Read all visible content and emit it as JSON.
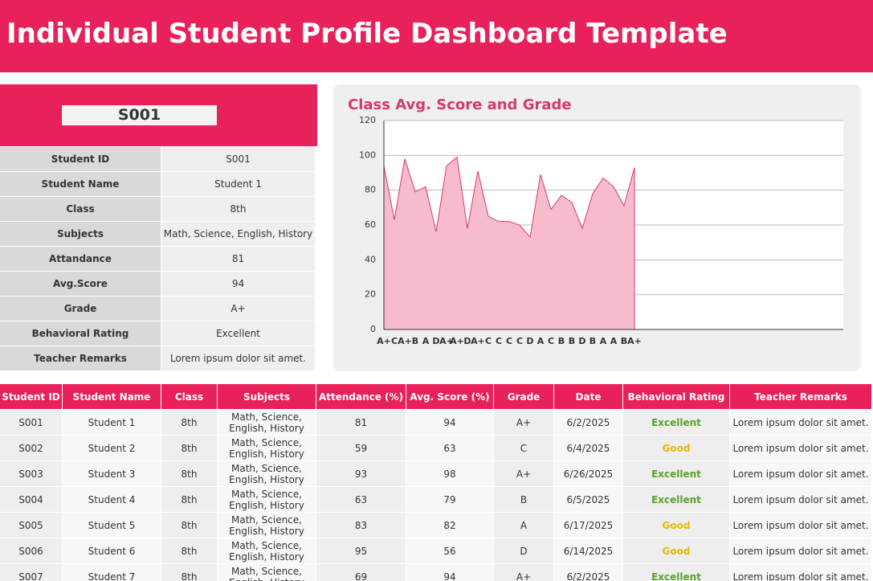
{
  "header": {
    "title": "Individual Student Profile Dashboard Template"
  },
  "profile": {
    "selected": "S001",
    "fields": [
      {
        "label": "Student ID",
        "value": "S001"
      },
      {
        "label": "Student Name",
        "value": "Student 1"
      },
      {
        "label": "Class",
        "value": "8th"
      },
      {
        "label": "Subjects",
        "value": "Math, Science, English, History"
      },
      {
        "label": "Attandance",
        "value": 81
      },
      {
        "label": "Avg.Score",
        "value": 94
      },
      {
        "label": "Grade",
        "value": "A+"
      },
      {
        "label": "Behavioral Rating",
        "value": "Excellent"
      },
      {
        "label": "Teacher Remarks",
        "value": "Lorem ipsum dolor sit amet."
      }
    ]
  },
  "chart_data": {
    "type": "area",
    "title": "Class Avg. Score and Grade",
    "categories": [
      "A+",
      "C",
      "A+",
      "B",
      "A",
      "D",
      "A+",
      "A+",
      "D",
      "A+",
      "C",
      "C",
      "C",
      "C",
      "D",
      "A",
      "C",
      "B",
      "B",
      "D",
      "B",
      "A",
      "A",
      "B",
      "A+"
    ],
    "values": [
      94,
      63,
      98,
      79,
      82,
      56,
      94,
      99,
      58,
      91,
      65,
      62,
      62,
      60,
      53,
      89,
      69,
      77,
      73,
      58,
      78,
      87,
      82,
      71,
      93
    ],
    "color": "#d6396b",
    "fill": "#f7bccb",
    "ylim": [
      0,
      120
    ],
    "yticks": [
      0,
      20,
      40,
      60,
      80,
      100,
      120
    ],
    "grid": true
  },
  "table": {
    "headers": [
      "Student ID",
      "Student Name",
      "Class",
      "Subjects",
      "Attendance (%)",
      "Avg. Score (%)",
      "Grade",
      "Date",
      "Behavioral Rating",
      "Teacher Remarks"
    ],
    "rows": [
      [
        "S001",
        "Student 1",
        "8th",
        "Math, Science, English, History",
        81,
        94,
        "A+",
        "6/2/2025",
        "Excellent",
        "Lorem ipsum dolor sit amet."
      ],
      [
        "S002",
        "Student 2",
        "8th",
        "Math, Science, English, History",
        59,
        63,
        "C",
        "6/4/2025",
        "Good",
        "Lorem ipsum dolor sit amet."
      ],
      [
        "S003",
        "Student 3",
        "8th",
        "Math, Science, English, History",
        93,
        98,
        "A+",
        "6/26/2025",
        "Excellent",
        "Lorem ipsum dolor sit amet."
      ],
      [
        "S004",
        "Student 4",
        "8th",
        "Math, Science, English, History",
        63,
        79,
        "B",
        "6/5/2025",
        "Excellent",
        "Lorem ipsum dolor sit amet."
      ],
      [
        "S005",
        "Student 5",
        "8th",
        "Math, Science, English, History",
        83,
        82,
        "A",
        "6/17/2025",
        "Good",
        "Lorem ipsum dolor sit amet."
      ],
      [
        "S006",
        "Student 6",
        "8th",
        "Math, Science, English, History",
        95,
        56,
        "D",
        "6/14/2025",
        "Good",
        "Lorem ipsum dolor sit amet."
      ],
      [
        "S007",
        "Student 7",
        "8th",
        "Math, Science, English, History",
        69,
        94,
        "A+",
        "6/2/2025",
        "Excellent",
        "Lorem ipsum dolor sit amet."
      ]
    ],
    "rating_colors": {
      "Excellent": "#5aa02c",
      "Good": "#e6b800"
    }
  }
}
